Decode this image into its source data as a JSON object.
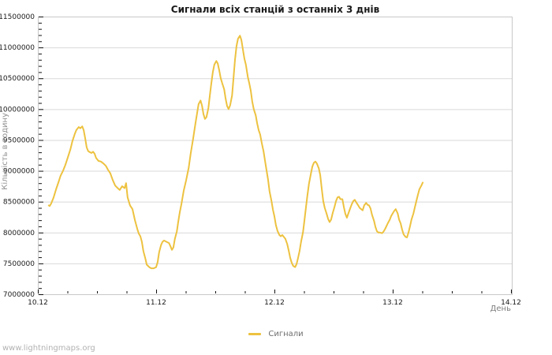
{
  "chart": {
    "title": "Сигнали всіх станцій з останніх 3 днів",
    "ylabel": "Кількість в годину",
    "xlabel": "День",
    "series_label": "Сигнали"
  },
  "footer": {
    "watermark": "www.lightningmaps.org"
  },
  "colors": {
    "series": "#edc240",
    "grid": "#d9d9d9",
    "border": "#c8c8c8",
    "tick": "#111111",
    "tick_label": "#1a1a1a",
    "axis_title": "#808080",
    "y_axis_title": "#909090",
    "legend_text": "#6e6e6e",
    "watermark": "#b2b2b2",
    "background": "#ffffff"
  },
  "chart_data": {
    "type": "line",
    "title": "Сигнали всіх станцій з останніх 3 днів",
    "xlabel": "День",
    "ylabel": "Кількість в годину",
    "legend": [
      "Сигнали"
    ],
    "legend_position": "bottom-center",
    "grid": "horizontal-only",
    "x_unit": "hours since 10.12 00:00",
    "xlim": [
      0,
      96
    ],
    "ylim": [
      7000000,
      11500000
    ],
    "x_ticks": [
      {
        "t": 0,
        "label": "10.12"
      },
      {
        "t": 24,
        "label": "11.12"
      },
      {
        "t": 48,
        "label": "12.12"
      },
      {
        "t": 72,
        "label": "13.12"
      },
      {
        "t": 96,
        "label": "14.12"
      }
    ],
    "x_minor_step_hours": 6,
    "y_tick_values": [
      7000000,
      7500000,
      8000000,
      8500000,
      9000000,
      9500000,
      10000000,
      10500000,
      11000000,
      11500000
    ],
    "y_tick_labels": [
      "7000000",
      "7500000",
      "8000000",
      "8500000",
      "9000000",
      "9500000",
      "10000000",
      "10500000",
      "11000000",
      "11500000"
    ],
    "y_minor_step": 100000,
    "series": [
      {
        "name": "Сигнали",
        "color": "#edc240",
        "points": [
          [
            2.2,
            8440000
          ],
          [
            2.4,
            8430000
          ],
          [
            2.7,
            8470000
          ],
          [
            3.2,
            8570000
          ],
          [
            3.7,
            8700000
          ],
          [
            4.2,
            8820000
          ],
          [
            4.6,
            8920000
          ],
          [
            5.1,
            9000000
          ],
          [
            5.6,
            9100000
          ],
          [
            6.1,
            9220000
          ],
          [
            6.6,
            9350000
          ],
          [
            7.0,
            9480000
          ],
          [
            7.5,
            9600000
          ],
          [
            7.8,
            9660000
          ],
          [
            8.3,
            9710000
          ],
          [
            8.6,
            9690000
          ],
          [
            9.0,
            9720000
          ],
          [
            9.3,
            9660000
          ],
          [
            9.6,
            9530000
          ],
          [
            9.9,
            9380000
          ],
          [
            10.2,
            9320000
          ],
          [
            10.6,
            9300000
          ],
          [
            10.9,
            9290000
          ],
          [
            11.2,
            9310000
          ],
          [
            11.5,
            9280000
          ],
          [
            11.8,
            9210000
          ],
          [
            12.3,
            9160000
          ],
          [
            12.8,
            9150000
          ],
          [
            13.3,
            9120000
          ],
          [
            13.8,
            9080000
          ],
          [
            14.2,
            9020000
          ],
          [
            14.7,
            8960000
          ],
          [
            15.2,
            8850000
          ],
          [
            15.7,
            8760000
          ],
          [
            16.2,
            8720000
          ],
          [
            16.6,
            8690000
          ],
          [
            17.1,
            8750000
          ],
          [
            17.6,
            8720000
          ],
          [
            17.9,
            8800000
          ],
          [
            18.2,
            8570000
          ],
          [
            18.7,
            8440000
          ],
          [
            19.2,
            8380000
          ],
          [
            19.7,
            8200000
          ],
          [
            20.2,
            8050000
          ],
          [
            20.5,
            7980000
          ],
          [
            20.8,
            7940000
          ],
          [
            21.1,
            7850000
          ],
          [
            21.4,
            7700000
          ],
          [
            21.8,
            7580000
          ],
          [
            22.1,
            7480000
          ],
          [
            22.6,
            7440000
          ],
          [
            23.0,
            7420000
          ],
          [
            23.5,
            7420000
          ],
          [
            24.0,
            7440000
          ],
          [
            24.3,
            7520000
          ],
          [
            24.6,
            7680000
          ],
          [
            25.0,
            7800000
          ],
          [
            25.3,
            7850000
          ],
          [
            25.6,
            7870000
          ],
          [
            26.1,
            7850000
          ],
          [
            26.6,
            7830000
          ],
          [
            26.9,
            7780000
          ],
          [
            27.2,
            7720000
          ],
          [
            27.5,
            7760000
          ],
          [
            27.8,
            7900000
          ],
          [
            28.2,
            8020000
          ],
          [
            28.5,
            8180000
          ],
          [
            28.8,
            8330000
          ],
          [
            29.1,
            8450000
          ],
          [
            29.6,
            8680000
          ],
          [
            30.1,
            8850000
          ],
          [
            30.6,
            9050000
          ],
          [
            31.0,
            9280000
          ],
          [
            31.5,
            9520000
          ],
          [
            32.0,
            9780000
          ],
          [
            32.3,
            9930000
          ],
          [
            32.6,
            10080000
          ],
          [
            33.0,
            10140000
          ],
          [
            33.3,
            10060000
          ],
          [
            33.6,
            9920000
          ],
          [
            33.9,
            9840000
          ],
          [
            34.2,
            9870000
          ],
          [
            34.6,
            10020000
          ],
          [
            34.9,
            10220000
          ],
          [
            35.2,
            10420000
          ],
          [
            35.5,
            10600000
          ],
          [
            35.8,
            10720000
          ],
          [
            36.2,
            10780000
          ],
          [
            36.5,
            10740000
          ],
          [
            36.8,
            10630000
          ],
          [
            37.1,
            10500000
          ],
          [
            37.4,
            10420000
          ],
          [
            37.8,
            10320000
          ],
          [
            38.1,
            10170000
          ],
          [
            38.4,
            10050000
          ],
          [
            38.7,
            10000000
          ],
          [
            39.0,
            10060000
          ],
          [
            39.4,
            10220000
          ],
          [
            39.7,
            10500000
          ],
          [
            40.0,
            10800000
          ],
          [
            40.3,
            11020000
          ],
          [
            40.6,
            11140000
          ],
          [
            41.0,
            11190000
          ],
          [
            41.3,
            11120000
          ],
          [
            41.6,
            10970000
          ],
          [
            41.9,
            10820000
          ],
          [
            42.2,
            10720000
          ],
          [
            42.6,
            10520000
          ],
          [
            42.9,
            10420000
          ],
          [
            43.2,
            10300000
          ],
          [
            43.5,
            10120000
          ],
          [
            43.8,
            10000000
          ],
          [
            44.2,
            9900000
          ],
          [
            44.5,
            9770000
          ],
          [
            44.8,
            9660000
          ],
          [
            45.1,
            9590000
          ],
          [
            45.4,
            9460000
          ],
          [
            45.8,
            9310000
          ],
          [
            46.1,
            9160000
          ],
          [
            46.4,
            9010000
          ],
          [
            46.7,
            8860000
          ],
          [
            47.0,
            8670000
          ],
          [
            47.4,
            8510000
          ],
          [
            47.7,
            8370000
          ],
          [
            48.0,
            8260000
          ],
          [
            48.3,
            8120000
          ],
          [
            48.6,
            8030000
          ],
          [
            49.0,
            7960000
          ],
          [
            49.3,
            7940000
          ],
          [
            49.6,
            7960000
          ],
          [
            49.9,
            7930000
          ],
          [
            50.2,
            7900000
          ],
          [
            50.6,
            7810000
          ],
          [
            50.9,
            7710000
          ],
          [
            51.2,
            7590000
          ],
          [
            51.5,
            7510000
          ],
          [
            51.8,
            7460000
          ],
          [
            52.2,
            7440000
          ],
          [
            52.5,
            7490000
          ],
          [
            52.8,
            7590000
          ],
          [
            53.1,
            7700000
          ],
          [
            53.4,
            7850000
          ],
          [
            53.8,
            8010000
          ],
          [
            54.1,
            8200000
          ],
          [
            54.4,
            8410000
          ],
          [
            54.7,
            8610000
          ],
          [
            55.0,
            8790000
          ],
          [
            55.4,
            8950000
          ],
          [
            55.7,
            9070000
          ],
          [
            56.0,
            9130000
          ],
          [
            56.3,
            9150000
          ],
          [
            56.6,
            9120000
          ],
          [
            57.0,
            9040000
          ],
          [
            57.3,
            8930000
          ],
          [
            57.6,
            8710000
          ],
          [
            57.9,
            8510000
          ],
          [
            58.2,
            8400000
          ],
          [
            58.6,
            8300000
          ],
          [
            58.9,
            8220000
          ],
          [
            59.2,
            8170000
          ],
          [
            59.5,
            8210000
          ],
          [
            59.8,
            8310000
          ],
          [
            60.2,
            8420000
          ],
          [
            60.5,
            8510000
          ],
          [
            60.8,
            8570000
          ],
          [
            61.1,
            8580000
          ],
          [
            61.4,
            8540000
          ],
          [
            61.8,
            8540000
          ],
          [
            62.1,
            8410000
          ],
          [
            62.4,
            8300000
          ],
          [
            62.7,
            8240000
          ],
          [
            63.0,
            8310000
          ],
          [
            63.4,
            8400000
          ],
          [
            63.7,
            8460000
          ],
          [
            64.0,
            8510000
          ],
          [
            64.3,
            8530000
          ],
          [
            64.6,
            8490000
          ],
          [
            65.0,
            8440000
          ],
          [
            65.3,
            8400000
          ],
          [
            65.6,
            8380000
          ],
          [
            65.9,
            8360000
          ],
          [
            66.2,
            8440000
          ],
          [
            66.6,
            8480000
          ],
          [
            66.9,
            8450000
          ],
          [
            67.2,
            8440000
          ],
          [
            67.5,
            8390000
          ],
          [
            67.8,
            8290000
          ],
          [
            68.2,
            8190000
          ],
          [
            68.5,
            8090000
          ],
          [
            68.8,
            8020000
          ],
          [
            69.1,
            8000000
          ],
          [
            69.4,
            8000000
          ],
          [
            69.8,
            7990000
          ],
          [
            70.1,
            8010000
          ],
          [
            70.4,
            8050000
          ],
          [
            70.7,
            8100000
          ],
          [
            71.0,
            8150000
          ],
          [
            71.4,
            8210000
          ],
          [
            71.7,
            8270000
          ],
          [
            72.0,
            8310000
          ],
          [
            72.3,
            8350000
          ],
          [
            72.6,
            8380000
          ],
          [
            73.0,
            8310000
          ],
          [
            73.3,
            8210000
          ],
          [
            73.6,
            8150000
          ],
          [
            73.9,
            8050000
          ],
          [
            74.2,
            7970000
          ],
          [
            74.6,
            7930000
          ],
          [
            74.9,
            7920000
          ],
          [
            75.2,
            8000000
          ],
          [
            75.5,
            8100000
          ],
          [
            75.8,
            8210000
          ],
          [
            76.2,
            8310000
          ],
          [
            76.5,
            8410000
          ],
          [
            76.8,
            8510000
          ],
          [
            77.1,
            8610000
          ],
          [
            77.4,
            8700000
          ],
          [
            77.8,
            8760000
          ],
          [
            78.1,
            8810000
          ]
        ]
      }
    ]
  }
}
